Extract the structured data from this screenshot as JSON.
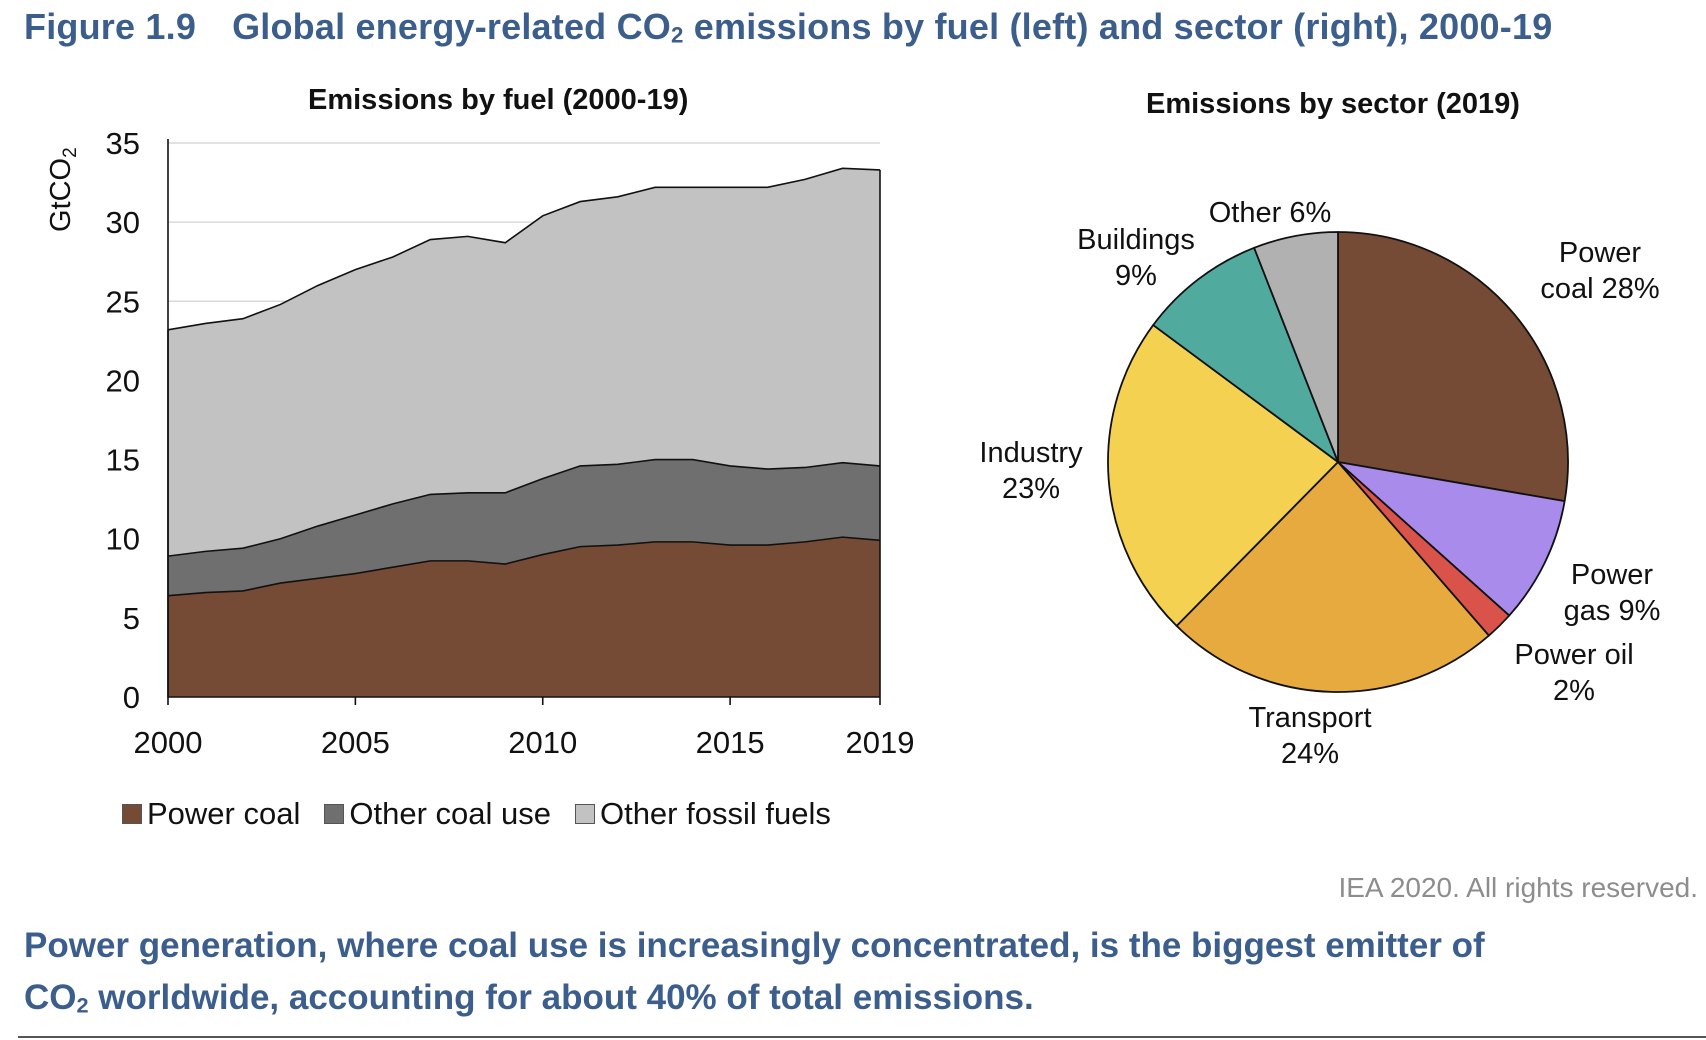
{
  "figure": {
    "number": "Figure 1.9",
    "title_main": "Global energy-related CO",
    "title_sub": "2",
    "title_rest": " emissions by fuel (left) and sector (right), 2000-19"
  },
  "chart_data": [
    {
      "type": "area",
      "stacked": true,
      "title": "Emissions by fuel (2000-19)",
      "ylabel": "GtCO2",
      "ylim": [
        0,
        35
      ],
      "yticks": [
        "0",
        "5",
        "10",
        "15",
        "20",
        "25",
        "30",
        "35"
      ],
      "xlim": [
        2000,
        2019
      ],
      "xticks": [
        "2000",
        "2005",
        "2010",
        "2015",
        "2019"
      ],
      "grid": true,
      "x": [
        2000,
        2001,
        2002,
        2003,
        2004,
        2005,
        2006,
        2007,
        2008,
        2009,
        2010,
        2011,
        2012,
        2013,
        2014,
        2015,
        2016,
        2017,
        2018,
        2019
      ],
      "series": [
        {
          "name": "Power coal",
          "color": "#764b35",
          "values": [
            6.4,
            6.6,
            6.7,
            7.2,
            7.5,
            7.8,
            8.2,
            8.6,
            8.6,
            8.4,
            9.0,
            9.5,
            9.6,
            9.8,
            9.8,
            9.6,
            9.6,
            9.8,
            10.1,
            9.9
          ]
        },
        {
          "name": "Other coal use",
          "color": "#6f6f6f",
          "values": [
            2.5,
            2.6,
            2.7,
            2.8,
            3.3,
            3.7,
            4.0,
            4.2,
            4.3,
            4.5,
            4.8,
            5.1,
            5.1,
            5.2,
            5.2,
            5.0,
            4.8,
            4.7,
            4.7,
            4.7
          ]
        },
        {
          "name": "Other fossil fuels",
          "color": "#c2c2c2",
          "values": [
            14.3,
            14.4,
            14.5,
            14.8,
            15.2,
            15.5,
            15.6,
            16.1,
            16.2,
            15.8,
            16.6,
            16.7,
            16.9,
            17.2,
            17.2,
            17.6,
            17.8,
            18.2,
            18.6,
            18.7
          ]
        }
      ],
      "legend": [
        "Power coal",
        "Other coal use",
        "Other fossil fuels"
      ],
      "legend_position": "bottom"
    },
    {
      "type": "pie",
      "title": "Emissions by sector (2019)",
      "slices": [
        {
          "name": "Power coal",
          "value": 28,
          "label_lines": [
            "Power",
            "coal 28%"
          ],
          "color": "#764b35"
        },
        {
          "name": "Power gas",
          "value": 9,
          "label_lines": [
            "Power",
            "gas 9%"
          ],
          "color": "#a88bea"
        },
        {
          "name": "Power oil",
          "value": 2,
          "label_lines": [
            "Power oil",
            "2%"
          ],
          "color": "#d9534b"
        },
        {
          "name": "Transport",
          "value": 24,
          "label_lines": [
            "Transport",
            "24%"
          ],
          "color": "#e6aa3e"
        },
        {
          "name": "Industry",
          "value": 23,
          "label_lines": [
            "Industry",
            "23%"
          ],
          "color": "#f5d152"
        },
        {
          "name": "Buildings",
          "value": 9,
          "label_lines": [
            "Buildings",
            "9%"
          ],
          "color": "#50ab9e"
        },
        {
          "name": "Other",
          "value": 6,
          "label_lines": [
            "Other 6%"
          ],
          "color": "#b1b1b1"
        }
      ]
    }
  ],
  "credit": "IEA 2020. All rights reserved.",
  "caption": {
    "line1": "Power generation, where coal use is increasingly concentrated, is the biggest emitter of",
    "line2_a": "CO",
    "line2_sub": "2",
    "line2_b": " worldwide, accounting for about 40% of total emissions."
  }
}
